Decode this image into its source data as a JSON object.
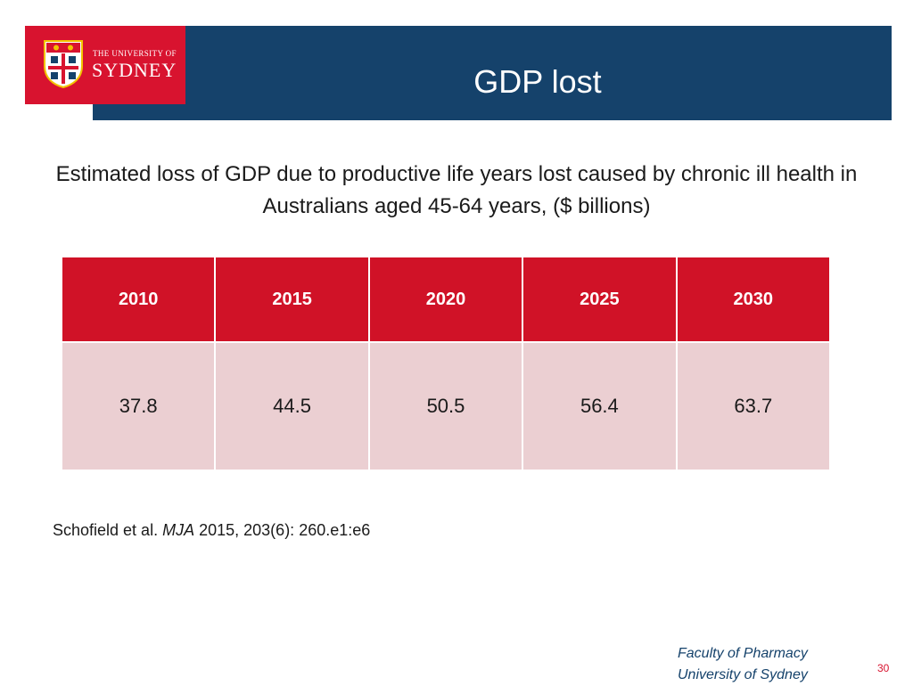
{
  "logo": {
    "line1": "THE UNIVERSITY OF",
    "line2": "SYDNEY"
  },
  "slide": {
    "title": "GDP lost",
    "subtitle": "Estimated loss of GDP due to productive life years lost caused by chronic ill health in Australians aged 45-64 years, ($ billions)"
  },
  "table": {
    "headers": [
      "2010",
      "2015",
      "2020",
      "2025",
      "2030"
    ],
    "values": [
      "37.8",
      "44.5",
      "50.5",
      "56.4",
      "63.7"
    ]
  },
  "citation": {
    "authors": "Schofield et al.",
    "journal": "MJA",
    "details": "2015, 203(6): 260.e1:e6"
  },
  "footer": {
    "line1": "Faculty of Pharmacy",
    "line2": "University of Sydney",
    "page": "30"
  },
  "colors": {
    "header_blue": "#15426b",
    "brand_red": "#d8132f",
    "table_header_red": "#d01227",
    "table_cell_pink": "#ebcfd2"
  }
}
